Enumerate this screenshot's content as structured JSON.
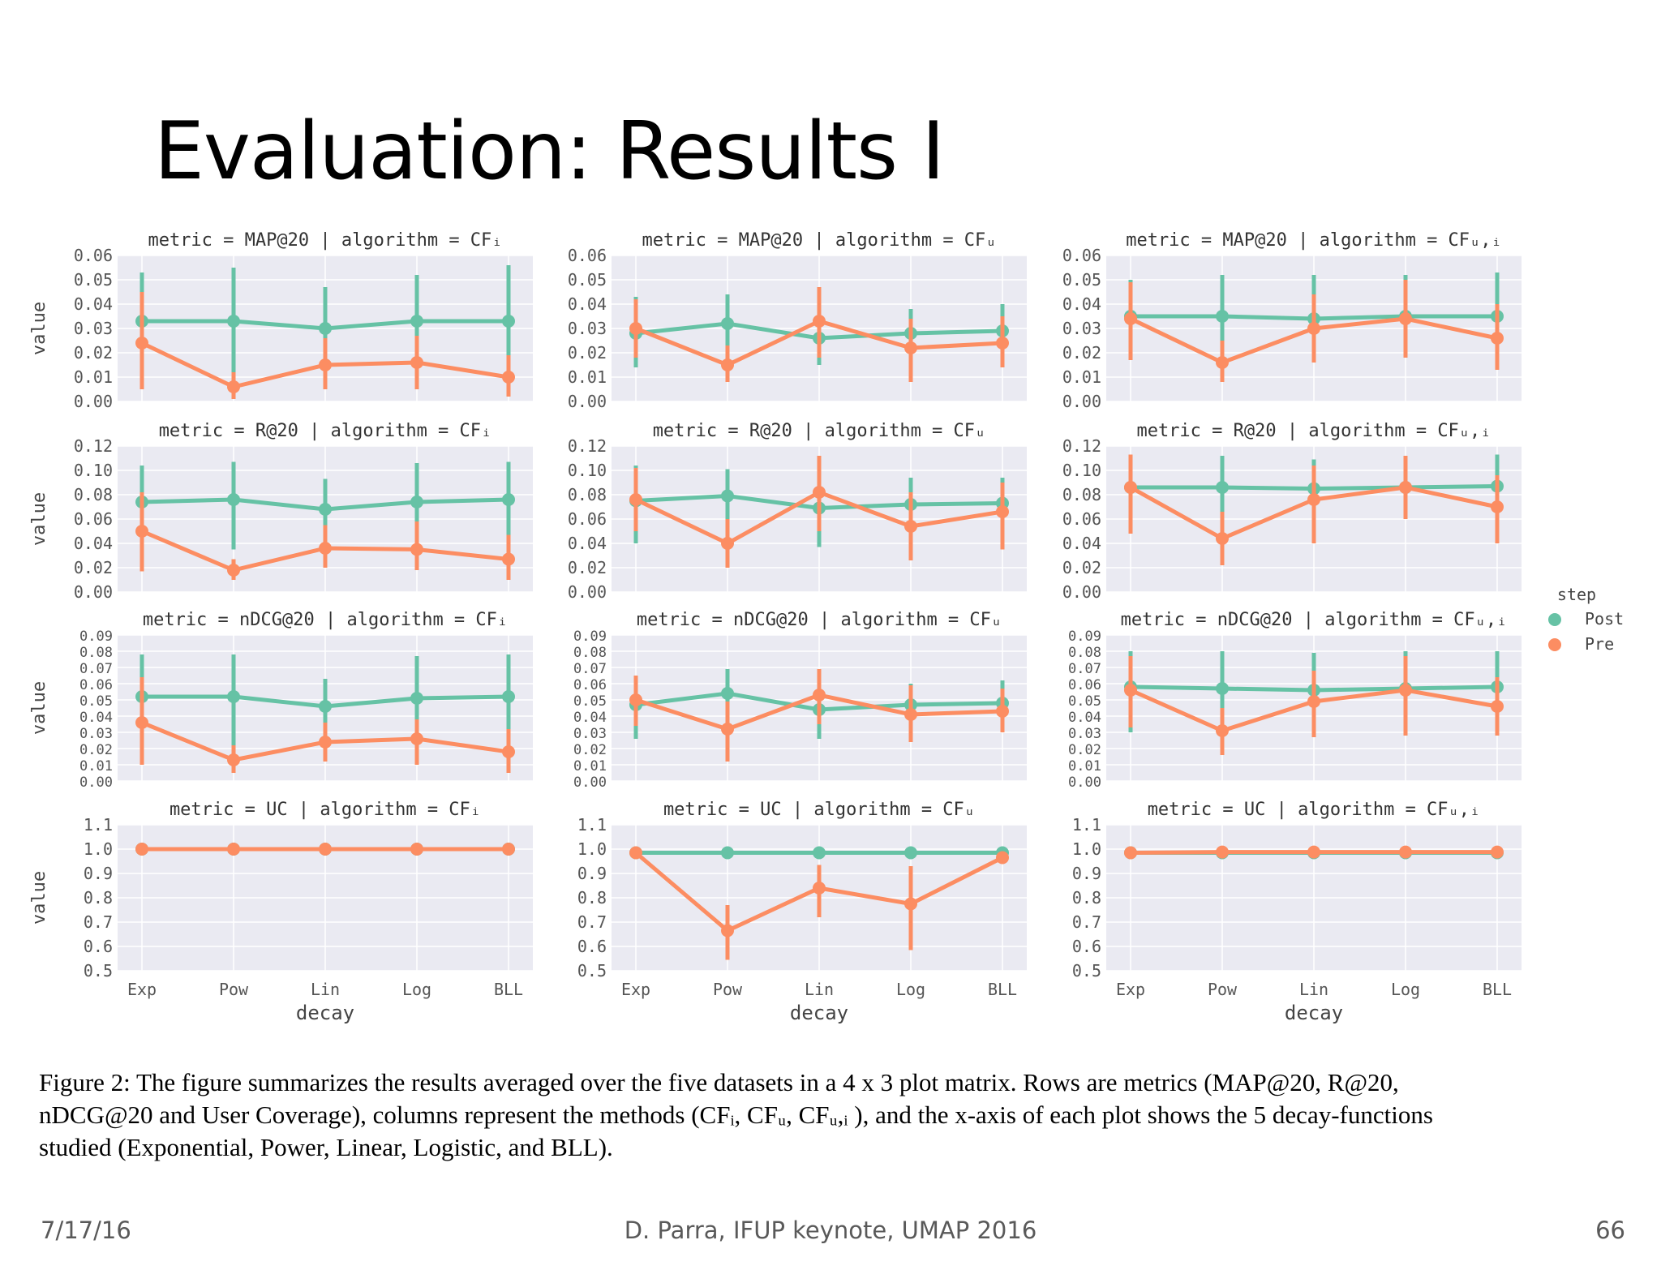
{
  "slide": {
    "title": "Evaluation: Results I",
    "caption_lines": [
      "Figure 2: The figure summarizes the results averaged over the five datasets in a 4 x 3 plot matrix. Rows are metrics (MAP@20, R@20,",
      "nDCG@20 and User Coverage), columns represent the methods (CFᵢ, CFᵤ, CFᵤ,ᵢ ), and the x-axis of each plot shows the 5 decay-functions",
      "studied (Exponential, Power, Linear, Logistic, and BLL)."
    ],
    "footer_date": "7/17/16",
    "footer_center": "D. Parra, IFUP keynote, UMAP 2016",
    "footer_page": "66"
  },
  "chart_data": {
    "type": "line",
    "categories": [
      "Exp",
      "Pow",
      "Lin",
      "Log",
      "BLL"
    ],
    "xlabel": "decay",
    "ylabel": "value",
    "legend": {
      "title": "step",
      "position": "right",
      "entries": [
        "Post",
        "Pre"
      ]
    },
    "colors": {
      "Post": "#66c2a5",
      "Pre": "#fc8d62",
      "panel_bg": "#eaeaf2",
      "grid": "#ffffff"
    },
    "rows": [
      {
        "metric": "MAP@20",
        "ylim": [
          0,
          0.06
        ],
        "yticks": [
          "0.00",
          "0.01",
          "0.02",
          "0.03",
          "0.04",
          "0.05",
          "0.06"
        ]
      },
      {
        "metric": "R@20",
        "ylim": [
          0,
          0.12
        ],
        "yticks": [
          "0.00",
          "0.02",
          "0.04",
          "0.06",
          "0.08",
          "0.10",
          "0.12"
        ]
      },
      {
        "metric": "nDCG@20",
        "ylim": [
          0,
          0.09
        ],
        "yticks": [
          "0.00",
          "0.01",
          "0.02",
          "0.03",
          "0.04",
          "0.05",
          "0.06",
          "0.07",
          "0.08",
          "0.09"
        ]
      },
      {
        "metric": "UC",
        "ylim": [
          0.5,
          1.1
        ],
        "yticks": [
          "0.5",
          "0.6",
          "0.7",
          "0.8",
          "0.9",
          "1.0",
          "1.1"
        ]
      }
    ],
    "algorithms": [
      "CFᵢ",
      "CFᵤ",
      "CFᵤ,ᵢ"
    ],
    "panels": [
      [
        {
          "title": "metric = MAP@20 | algorithm = CFᵢ",
          "series": [
            {
              "name": "Post",
              "values": [
                0.033,
                0.033,
                0.03,
                0.033,
                0.033
              ],
              "err_low": [
                0.021,
                0.011,
                0.014,
                0.015,
                0.011
              ],
              "err_high": [
                0.053,
                0.055,
                0.047,
                0.052,
                0.056
              ]
            },
            {
              "name": "Pre",
              "values": [
                0.024,
                0.006,
                0.015,
                0.016,
                0.01
              ],
              "err_low": [
                0.005,
                0.001,
                0.005,
                0.005,
                0.002
              ],
              "err_high": [
                0.045,
                0.012,
                0.026,
                0.027,
                0.019
              ]
            }
          ]
        },
        {
          "title": "metric = MAP@20 | algorithm = CFᵤ",
          "series": [
            {
              "name": "Post",
              "values": [
                0.028,
                0.032,
                0.026,
                0.028,
                0.029
              ],
              "err_low": [
                0.014,
                0.02,
                0.015,
                0.018,
                0.018
              ],
              "err_high": [
                0.043,
                0.044,
                0.038,
                0.038,
                0.04
              ]
            },
            {
              "name": "Pre",
              "values": [
                0.03,
                0.015,
                0.033,
                0.022,
                0.024
              ],
              "err_low": [
                0.018,
                0.008,
                0.018,
                0.008,
                0.014
              ],
              "err_high": [
                0.042,
                0.023,
                0.047,
                0.034,
                0.035
              ]
            }
          ]
        },
        {
          "title": "metric = MAP@20 | algorithm = CFᵤ,ᵢ",
          "series": [
            {
              "name": "Post",
              "values": [
                0.035,
                0.035,
                0.034,
                0.035,
                0.035
              ],
              "err_low": [
                0.021,
                0.02,
                0.018,
                0.021,
                0.018
              ],
              "err_high": [
                0.05,
                0.052,
                0.052,
                0.052,
                0.053
              ]
            },
            {
              "name": "Pre",
              "values": [
                0.034,
                0.016,
                0.03,
                0.034,
                0.026
              ],
              "err_low": [
                0.017,
                0.008,
                0.016,
                0.018,
                0.013
              ],
              "err_high": [
                0.049,
                0.025,
                0.044,
                0.05,
                0.04
              ]
            }
          ]
        }
      ],
      [
        {
          "title": "metric = R@20 | algorithm = CFᵢ",
          "series": [
            {
              "name": "Post",
              "values": [
                0.074,
                0.076,
                0.068,
                0.074,
                0.076
              ],
              "err_low": [
                0.048,
                0.035,
                0.04,
                0.042,
                0.04
              ],
              "err_high": [
                0.104,
                0.107,
                0.093,
                0.106,
                0.107
              ]
            },
            {
              "name": "Pre",
              "values": [
                0.05,
                0.018,
                0.036,
                0.035,
                0.027
              ],
              "err_low": [
                0.017,
                0.01,
                0.02,
                0.018,
                0.01
              ],
              "err_high": [
                0.082,
                0.027,
                0.055,
                0.058,
                0.047
              ]
            }
          ]
        },
        {
          "title": "metric = R@20 | algorithm = CFᵤ",
          "series": [
            {
              "name": "Post",
              "values": [
                0.075,
                0.079,
                0.069,
                0.072,
                0.073
              ],
              "err_low": [
                0.04,
                0.058,
                0.037,
                0.05,
                0.05
              ],
              "err_high": [
                0.104,
                0.101,
                0.093,
                0.094,
                0.094
              ]
            },
            {
              "name": "Pre",
              "values": [
                0.076,
                0.04,
                0.082,
                0.054,
                0.066
              ],
              "err_low": [
                0.05,
                0.02,
                0.05,
                0.026,
                0.035
              ],
              "err_high": [
                0.102,
                0.06,
                0.112,
                0.082,
                0.09
              ]
            }
          ]
        },
        {
          "title": "metric = R@20 | algorithm = CFᵤ,ᵢ",
          "series": [
            {
              "name": "Post",
              "values": [
                0.086,
                0.086,
                0.085,
                0.086,
                0.087
              ],
              "err_low": [
                0.05,
                0.06,
                0.055,
                0.06,
                0.06
              ],
              "err_high": [
                0.113,
                0.112,
                0.109,
                0.112,
                0.113
              ]
            },
            {
              "name": "Pre",
              "values": [
                0.086,
                0.044,
                0.076,
                0.086,
                0.07
              ],
              "err_low": [
                0.048,
                0.022,
                0.04,
                0.06,
                0.04
              ],
              "err_high": [
                0.113,
                0.066,
                0.104,
                0.112,
                0.096
              ]
            }
          ]
        }
      ],
      [
        {
          "title": "metric = nDCG@20 | algorithm = CFᵢ",
          "series": [
            {
              "name": "Post",
              "values": [
                0.052,
                0.052,
                0.046,
                0.051,
                0.052
              ],
              "err_low": [
                0.033,
                0.022,
                0.027,
                0.028,
                0.022
              ],
              "err_high": [
                0.078,
                0.078,
                0.063,
                0.077,
                0.078
              ]
            },
            {
              "name": "Pre",
              "values": [
                0.036,
                0.013,
                0.024,
                0.026,
                0.018
              ],
              "err_low": [
                0.01,
                0.005,
                0.012,
                0.01,
                0.005
              ],
              "err_high": [
                0.064,
                0.022,
                0.036,
                0.038,
                0.032
              ]
            }
          ]
        },
        {
          "title": "metric = nDCG@20 | algorithm = CFᵤ",
          "series": [
            {
              "name": "Post",
              "values": [
                0.047,
                0.054,
                0.044,
                0.047,
                0.048
              ],
              "err_low": [
                0.026,
                0.038,
                0.026,
                0.034,
                0.033
              ],
              "err_high": [
                0.064,
                0.069,
                0.06,
                0.06,
                0.062
              ]
            },
            {
              "name": "Pre",
              "values": [
                0.05,
                0.032,
                0.053,
                0.041,
                0.043
              ],
              "err_low": [
                0.034,
                0.012,
                0.035,
                0.024,
                0.03
              ],
              "err_high": [
                0.065,
                0.049,
                0.069,
                0.059,
                0.057
              ]
            }
          ]
        },
        {
          "title": "metric = nDCG@20 | algorithm = CFᵤ,ᵢ",
          "series": [
            {
              "name": "Post",
              "values": [
                0.058,
                0.057,
                0.056,
                0.057,
                0.058
              ],
              "err_low": [
                0.03,
                0.036,
                0.032,
                0.035,
                0.033
              ],
              "err_high": [
                0.08,
                0.08,
                0.079,
                0.08,
                0.08
              ]
            },
            {
              "name": "Pre",
              "values": [
                0.056,
                0.031,
                0.049,
                0.056,
                0.046
              ],
              "err_low": [
                0.033,
                0.016,
                0.027,
                0.028,
                0.028
              ],
              "err_high": [
                0.077,
                0.045,
                0.068,
                0.077,
                0.064
              ]
            }
          ]
        }
      ],
      [
        {
          "title": "metric = UC | algorithm = CFᵢ",
          "series": [
            {
              "name": "Post",
              "values": [
                1.0,
                1.0,
                1.0,
                1.0,
                1.0
              ],
              "err_low": [
                0.995,
                0.995,
                0.995,
                0.995,
                0.995
              ],
              "err_high": [
                1.005,
                1.005,
                1.005,
                1.005,
                1.005
              ]
            },
            {
              "name": "Pre",
              "values": [
                1.0,
                1.0,
                1.0,
                1.0,
                1.0
              ],
              "err_low": [
                0.995,
                0.995,
                0.995,
                0.995,
                0.995
              ],
              "err_high": [
                1.005,
                1.005,
                1.005,
                1.005,
                1.005
              ]
            }
          ]
        },
        {
          "title": "metric = UC | algorithm = CFᵤ",
          "series": [
            {
              "name": "Post",
              "values": [
                0.985,
                0.985,
                0.985,
                0.985,
                0.985
              ],
              "err_low": [
                0.975,
                0.975,
                0.975,
                0.975,
                0.975
              ],
              "err_high": [
                0.995,
                0.995,
                0.995,
                0.995,
                0.995
              ]
            },
            {
              "name": "Pre",
              "values": [
                0.985,
                0.665,
                0.84,
                0.775,
                0.965
              ],
              "err_low": [
                0.975,
                0.545,
                0.72,
                0.585,
                0.945
              ],
              "err_high": [
                0.995,
                0.77,
                0.935,
                0.93,
                0.985
              ]
            }
          ]
        },
        {
          "title": "metric = UC | algorithm = CFᵤ,ᵢ",
          "series": [
            {
              "name": "Post",
              "values": [
                0.985,
                0.985,
                0.985,
                0.985,
                0.985
              ],
              "err_low": [
                0.975,
                0.975,
                0.975,
                0.975,
                0.975
              ],
              "err_high": [
                0.995,
                0.995,
                0.995,
                0.995,
                0.995
              ]
            },
            {
              "name": "Pre",
              "values": [
                0.985,
                0.988,
                0.988,
                0.988,
                0.988
              ],
              "err_low": [
                0.975,
                0.978,
                0.978,
                0.978,
                0.978
              ],
              "err_high": [
                0.995,
                0.998,
                0.998,
                0.998,
                0.998
              ]
            }
          ]
        }
      ]
    ]
  }
}
